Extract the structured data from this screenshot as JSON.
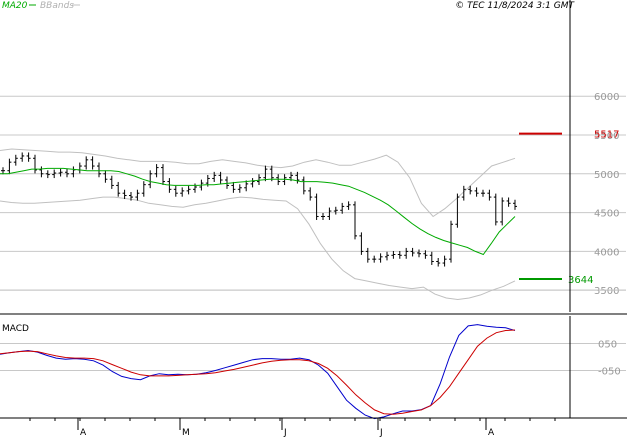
{
  "header": {
    "ma_label": "MA20",
    "bb_label": "BBands",
    "copyright": "© TEC 11/8/2024 3:1 GMT"
  },
  "colors": {
    "ma": "#00aa00",
    "bbands": "#c0c0c0",
    "price": "#000000",
    "resistance": "#cc0000",
    "support": "#009900",
    "macd": "#0000cc",
    "signal": "#cc0000",
    "grid": "#c8c8c8"
  },
  "chart_data": [
    {
      "type": "ohlc",
      "y_ticks": [
        3500,
        4000,
        4500,
        5000,
        5500,
        6000
      ],
      "ylim": [
        3000,
        6250
      ],
      "x_month_labels": [
        "A",
        "M",
        "J",
        "J",
        "A"
      ],
      "levels": [
        {
          "name": "resistance",
          "value": 5517,
          "label": "5517"
        },
        {
          "name": "support",
          "value": 3644,
          "label": "3644"
        }
      ],
      "close": [
        5040,
        5150,
        5200,
        5230,
        5200,
        5050,
        5000,
        4990,
        5010,
        5020,
        5000,
        5050,
        5100,
        5180,
        5100,
        5000,
        4930,
        4850,
        4750,
        4720,
        4700,
        4750,
        4860,
        5000,
        5080,
        4900,
        4800,
        4750,
        4780,
        4800,
        4830,
        4880,
        4940,
        4980,
        4920,
        4850,
        4800,
        4820,
        4870,
        4900,
        4950,
        5060,
        4950,
        4900,
        4950,
        4980,
        4920,
        4780,
        4700,
        4450,
        4450,
        4520,
        4530,
        4580,
        4600,
        4200,
        4000,
        3900,
        3900,
        3930,
        3950,
        3960,
        3950,
        4000,
        3980,
        3970,
        3950,
        3870,
        3850,
        3900,
        4350,
        4700,
        4800,
        4780,
        4750,
        4750,
        4700,
        4380,
        4650,
        4620,
        4580
      ],
      "ma20": [
        5000,
        5000,
        5020,
        5040,
        5060,
        5060,
        5070,
        5070,
        5070,
        5060,
        5050,
        5040,
        5040,
        5040,
        5040,
        5030,
        5000,
        4970,
        4930,
        4900,
        4880,
        4860,
        4850,
        4850,
        4850,
        4850,
        4860,
        4860,
        4870,
        4880,
        4890,
        4900,
        4910,
        4920,
        4930,
        4930,
        4930,
        4920,
        4900,
        4900,
        4900,
        4890,
        4880,
        4860,
        4840,
        4800,
        4760,
        4710,
        4660,
        4600,
        4520,
        4440,
        4360,
        4290,
        4230,
        4180,
        4140,
        4110,
        4080,
        4050,
        4000,
        3960,
        4100,
        4250,
        4350,
        4450
      ],
      "ma20_start_index": 0,
      "bb_upper": [
        5300,
        5320,
        5310,
        5300,
        5290,
        5280,
        5280,
        5270,
        5250,
        5230,
        5200,
        5180,
        5160,
        5160,
        5160,
        5150,
        5130,
        5130,
        5160,
        5180,
        5160,
        5140,
        5110,
        5090,
        5080,
        5100,
        5150,
        5180,
        5150,
        5110,
        5110,
        5150,
        5190,
        5240,
        5150,
        4950,
        4620,
        4450,
        4550,
        4680,
        4820,
        4960,
        5100,
        5150,
        5200
      ],
      "bb_lower": [
        4650,
        4630,
        4620,
        4620,
        4630,
        4640,
        4650,
        4660,
        4680,
        4700,
        4700,
        4680,
        4660,
        4620,
        4600,
        4580,
        4570,
        4600,
        4620,
        4650,
        4680,
        4700,
        4690,
        4670,
        4660,
        4650,
        4550,
        4350,
        4100,
        3900,
        3750,
        3650,
        3620,
        3590,
        3560,
        3540,
        3520,
        3540,
        3450,
        3400,
        3380,
        3400,
        3440,
        3500,
        3550,
        3620
      ]
    },
    {
      "type": "line",
      "title": "MACD",
      "y_ticks": [
        50,
        -50
      ],
      "y_tick_labels": [
        "050",
        "-050"
      ],
      "series": [
        {
          "values": [
            10,
            16,
            20,
            24,
            18,
            6,
            -4,
            -8,
            -6,
            -8,
            -14,
            -30,
            -54,
            -72,
            -80,
            -84,
            -70,
            -62,
            -66,
            -64,
            -66,
            -64,
            -58,
            -50,
            -40,
            -30,
            -20,
            -10,
            -6,
            -6,
            -8,
            -8,
            -4,
            -10,
            -30,
            -60,
            -110,
            -160,
            -190,
            -215,
            -228,
            -222,
            -210,
            -200,
            -200,
            -195,
            -180,
            -100,
            0,
            80,
            115,
            120,
            114,
            110,
            108,
            98
          ]
        },
        {
          "values": [
            12,
            16,
            20,
            22,
            20,
            12,
            4,
            -2,
            -4,
            -4,
            -6,
            -14,
            -28,
            -42,
            -56,
            -66,
            -70,
            -70,
            -70,
            -68,
            -66,
            -64,
            -62,
            -58,
            -52,
            -46,
            -38,
            -30,
            -22,
            -16,
            -12,
            -10,
            -10,
            -14,
            -24,
            -42,
            -70,
            -104,
            -140,
            -170,
            -196,
            -210,
            -212,
            -208,
            -202,
            -196,
            -180,
            -150,
            -110,
            -60,
            -10,
            40,
            70,
            90,
            98,
            100
          ]
        }
      ]
    }
  ]
}
